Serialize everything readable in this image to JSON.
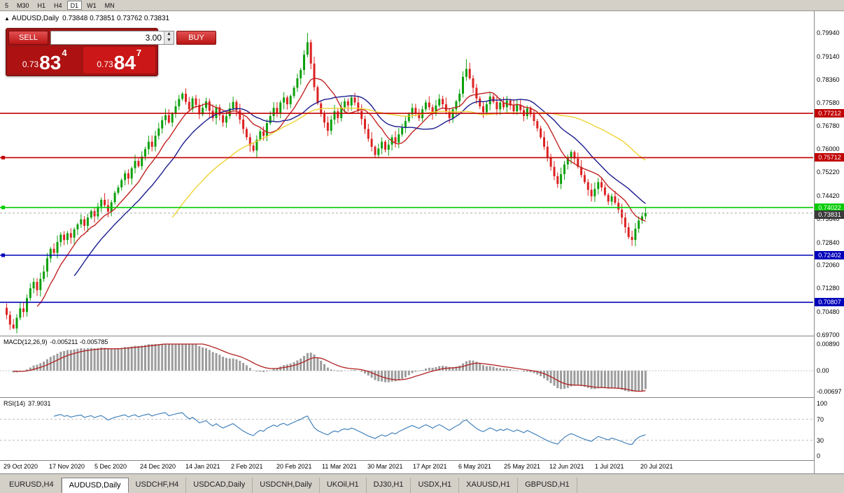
{
  "toolbar": {
    "timeframes": [
      "5",
      "M30",
      "H1",
      "H4",
      "D1",
      "W1",
      "MN"
    ],
    "active_timeframe": "D1"
  },
  "chart_header": {
    "collapse_icon": "▲",
    "title": "AUDUSD,Daily",
    "quotes": "0.73848 0.73851 0.73762 0.73831"
  },
  "trade_panel": {
    "sell_label": "SELL",
    "buy_label": "BUY",
    "lot_size": "3.00",
    "sell_price": {
      "prefix": "0.73",
      "big": "83",
      "sup": "4"
    },
    "buy_price": {
      "prefix": "0.73",
      "big": "84",
      "sup": "7"
    }
  },
  "tabs": [
    {
      "label": "EURUSD,H4",
      "active": false
    },
    {
      "label": "AUDUSD,Daily",
      "active": true
    },
    {
      "label": "USDCHF,H4",
      "active": false
    },
    {
      "label": "USDCAD,Daily",
      "active": false
    },
    {
      "label": "USDCNH,Daily",
      "active": false
    },
    {
      "label": "UKOil,H1",
      "active": false
    },
    {
      "label": "DJ30,H1",
      "active": false
    },
    {
      "label": "USDX,H1",
      "active": false
    },
    {
      "label": "XAUUSD,H1",
      "active": false
    },
    {
      "label": "GBPUSD,H1",
      "active": false
    }
  ],
  "chart_data": {
    "type": "candlestick",
    "symbol": "AUDUSD",
    "period": "Daily",
    "price_axis": {
      "ticks": [
        "0.79940",
        "0.79140",
        "0.78360",
        "0.77580",
        "0.76780",
        "0.76000",
        "0.75220",
        "0.74420",
        "0.73640",
        "0.72840",
        "0.72060",
        "0.71280",
        "0.70480",
        "0.69700"
      ],
      "top_price": 0.7994,
      "bottom_price": 0.697
    },
    "time_ticks": [
      "29 Oct 2020",
      "17 Nov 2020",
      "5 Dec 2020",
      "24 Dec 2020",
      "14 Jan 2021",
      "2 Feb 2021",
      "20 Feb 2021",
      "11 Mar 2021",
      "30 Mar 2021",
      "17 Apr 2021",
      "6 May 2021",
      "25 May 2021",
      "12 Jun 2021",
      "1 Jul 2021",
      "20 Jul 2021"
    ],
    "bull_color": "#0ca00c",
    "bear_color": "#dd2222",
    "first_open": 0.7062,
    "closes": [
      0.7038,
      0.7005,
      0.6992,
      0.7028,
      0.706,
      0.7048,
      0.7095,
      0.7128,
      0.715,
      0.7122,
      0.716,
      0.7185,
      0.723,
      0.7262,
      0.7248,
      0.7285,
      0.731,
      0.7292,
      0.7315,
      0.73,
      0.7328,
      0.7345,
      0.7362,
      0.734,
      0.7368,
      0.739,
      0.7372,
      0.7405,
      0.7428,
      0.741,
      0.7388,
      0.742,
      0.7452,
      0.747,
      0.7495,
      0.7518,
      0.75,
      0.7535,
      0.756,
      0.7542,
      0.7575,
      0.76,
      0.7625,
      0.7608,
      0.7645,
      0.767,
      0.7698,
      0.7715,
      0.769,
      0.772,
      0.7745,
      0.777,
      0.7788,
      0.776,
      0.7735,
      0.7772,
      0.775,
      0.7718,
      0.774,
      0.7762,
      0.773,
      0.7705,
      0.7742,
      0.7715,
      0.769,
      0.7712,
      0.7738,
      0.776,
      0.7732,
      0.77,
      0.7668,
      0.764,
      0.7612,
      0.7595,
      0.7632,
      0.766,
      0.7645,
      0.7688,
      0.7712,
      0.774,
      0.7722,
      0.7758,
      0.7775,
      0.7752,
      0.778,
      0.7808,
      0.784,
      0.7868,
      0.792,
      0.7962,
      0.789,
      0.781,
      0.7755,
      0.7722,
      0.769,
      0.7662,
      0.77,
      0.7728,
      0.7705,
      0.7742,
      0.7762,
      0.7748,
      0.7775,
      0.7758,
      0.773,
      0.7702,
      0.7668,
      0.7635,
      0.7608,
      0.758,
      0.7602,
      0.7625,
      0.7598,
      0.7615,
      0.764,
      0.7622,
      0.765,
      0.7672,
      0.7695,
      0.7718,
      0.774,
      0.7722,
      0.7705,
      0.7735,
      0.7758,
      0.7742,
      0.772,
      0.7748,
      0.777,
      0.7752,
      0.7728,
      0.7705,
      0.7735,
      0.7762,
      0.7788,
      0.7845,
      0.7872,
      0.784,
      0.7808,
      0.7772,
      0.7745,
      0.7725,
      0.7752,
      0.7778,
      0.776,
      0.7735,
      0.7758,
      0.7742,
      0.7765,
      0.7748,
      0.7728,
      0.775,
      0.7732,
      0.7712,
      0.7738,
      0.7718,
      0.7695,
      0.767,
      0.764,
      0.7608,
      0.7572,
      0.754,
      0.7508,
      0.7482,
      0.7515,
      0.7548,
      0.7572,
      0.759,
      0.7568,
      0.754,
      0.7512,
      0.7488,
      0.7462,
      0.744,
      0.7465,
      0.7488,
      0.747,
      0.7445,
      0.7422,
      0.744,
      0.7418,
      0.7395,
      0.7368,
      0.7335,
      0.7302,
      0.7292,
      0.733,
      0.7358,
      0.7372,
      0.7383
    ],
    "candle_overrides": [
      {
        "index": 2,
        "low": 0.699
      },
      {
        "index": 89,
        "high": 0.7994
      },
      {
        "index": 136,
        "high": 0.7905
      },
      {
        "index": 185,
        "low": 0.7272
      }
    ],
    "moving_averages": [
      {
        "name": "fast-ma",
        "period": 10,
        "color": "#c22222"
      },
      {
        "name": "mid-ma",
        "period": 21,
        "color": "#1c1c8e"
      },
      {
        "name": "slow-ma",
        "period": 50,
        "color": "#eed334"
      }
    ],
    "horizontal_lines": [
      {
        "price": 0.77212,
        "label": "0.77212",
        "color": "#c00000",
        "handle": false
      },
      {
        "price": 0.75712,
        "label": "0.75712",
        "color": "#c00000",
        "handle": true
      },
      {
        "price": 0.74022,
        "label": "0.74022",
        "color": "#00cc00",
        "handle": true
      },
      {
        "price": 0.72402,
        "label": "0.72402",
        "color": "#0000bb",
        "handle": true
      },
      {
        "price": 0.70807,
        "label": "0.70807",
        "color": "#0000bb",
        "handle": false
      }
    ],
    "current_price": {
      "label": "0.73831",
      "price": 0.73831,
      "color": "#3a3a3a"
    },
    "macd": {
      "label": "MACD(12,26,9)",
      "values": "-0.005211 -0.005785",
      "fast": 12,
      "slow": 26,
      "signal": 9,
      "ticks": [
        "0.00890",
        "0.00",
        "-0.00697"
      ],
      "top": 0.0089,
      "bottom": -0.00697,
      "histogram_color": "#9c9c9c",
      "signal_color": "#b22222"
    },
    "rsi": {
      "label": "RSI(14)",
      "value": "37.9031",
      "period": 14,
      "ticks": [
        "100",
        "70",
        "30",
        "0"
      ],
      "levels": [
        70,
        30
      ],
      "color": "#3579b8"
    }
  }
}
